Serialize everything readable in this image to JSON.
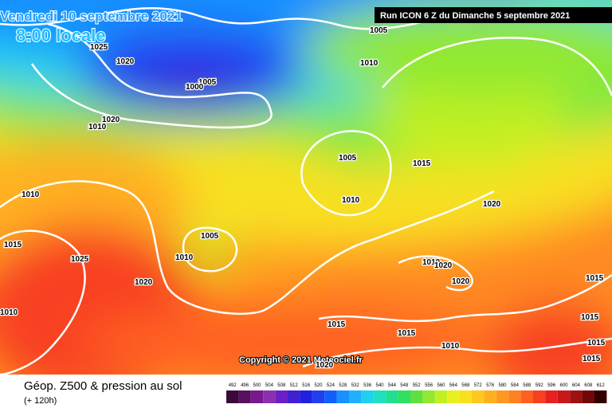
{
  "header": {
    "date": "Vendredi 10 septembre 2021",
    "time": "8:00 locale",
    "run": "Run ICON 6 Z du Dimanche 5 septembre 2021"
  },
  "copyright": "Copyright © 2021 Meteociel.fr",
  "footer": {
    "title": "Géop. Z500 & pression au sol",
    "lead": "(+ 120h)"
  },
  "isobar_labels": [
    1005,
    1025,
    1020,
    1010,
    1005,
    1000,
    1020,
    1010,
    1005,
    1015,
    1010,
    1010,
    1020,
    1005,
    1015,
    1010,
    1025,
    1010,
    1020,
    1020,
    1020,
    1015,
    1010,
    1015,
    1015,
    1015,
    1010,
    1015,
    1015,
    1020
  ],
  "colorbar": {
    "labels": [
      492,
      496,
      500,
      504,
      508,
      512,
      516,
      520,
      524,
      528,
      532,
      536,
      540,
      544,
      548,
      552,
      556,
      560,
      564,
      568,
      572,
      576,
      580,
      584,
      588,
      592,
      596,
      600,
      604,
      608,
      612
    ],
    "colors": [
      "#3a0a3a",
      "#5a1060",
      "#7a1890",
      "#8a30b0",
      "#6a20c8",
      "#4020d0",
      "#2020e0",
      "#2040f0",
      "#1060f8",
      "#1890ff",
      "#20b0ff",
      "#20d0f0",
      "#20e0c0",
      "#20e090",
      "#30e060",
      "#60e040",
      "#90e830",
      "#c0f020",
      "#e8f020",
      "#f8e020",
      "#ffc820",
      "#ffb020",
      "#ff9820",
      "#ff8020",
      "#ff6020",
      "#f84020",
      "#e82020",
      "#c81818",
      "#a01010",
      "#700808",
      "#300000"
    ]
  }
}
